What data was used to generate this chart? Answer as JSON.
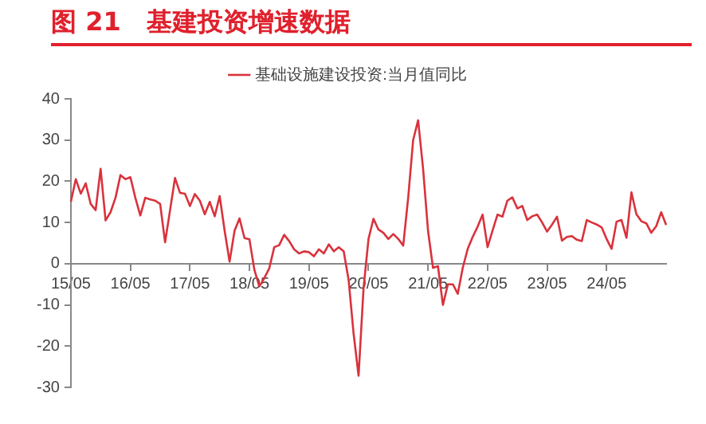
{
  "chart_data": {
    "type": "line",
    "title": "图 21　基建投资增速数据",
    "legend": "top",
    "marker": "none",
    "categories": [
      "15/05",
      null,
      null,
      null,
      null,
      null,
      null,
      null,
      null,
      null,
      null,
      null,
      "16/05",
      null,
      null,
      null,
      null,
      null,
      null,
      null,
      null,
      null,
      null,
      null,
      "17/05",
      null,
      null,
      null,
      null,
      null,
      null,
      null,
      null,
      null,
      null,
      null,
      "18/05",
      null,
      null,
      null,
      null,
      null,
      null,
      null,
      null,
      null,
      null,
      null,
      "19/05",
      null,
      null,
      null,
      null,
      null,
      null,
      null,
      null,
      null,
      null,
      null,
      "20/05",
      null,
      null,
      null,
      null,
      null,
      null,
      null,
      null,
      null,
      null,
      null,
      "21/05",
      null,
      null,
      null,
      null,
      null,
      null,
      null,
      null,
      null,
      null,
      null,
      "22/05",
      null,
      null,
      null,
      null,
      null,
      null,
      null,
      null,
      null,
      null,
      null,
      "23/05",
      null,
      null,
      null,
      null,
      null,
      null,
      null,
      null,
      null,
      null,
      null,
      "24/05",
      null,
      null,
      null,
      null,
      null,
      null,
      null,
      null,
      null,
      null,
      null,
      null
    ],
    "series": [
      {
        "name": "基础设施建设投资:当月值同比",
        "color": "#d9323c",
        "values": [
          15,
          20.5,
          17,
          19.5,
          14.5,
          13,
          23,
          10.5,
          12.5,
          16,
          21.5,
          20.5,
          21,
          16,
          11.7,
          16,
          15.6,
          15.3,
          14.5,
          5.2,
          13,
          20.8,
          17.2,
          17,
          14,
          16.9,
          15.3,
          12,
          15,
          11.5,
          16.4,
          8,
          0.5,
          8,
          11,
          6.2,
          5.9,
          -1.5,
          -5.5,
          -3.5,
          -1.1,
          4,
          4.5,
          7,
          5.5,
          3.5,
          2.5,
          3,
          2.8,
          1.8,
          3.5,
          2.5,
          4.7,
          3,
          4,
          3,
          -4,
          -17,
          -27.2,
          -6,
          6,
          10.9,
          8.3,
          7.5,
          6,
          7.2,
          6,
          4.4,
          16,
          30,
          34.8,
          23.1,
          8,
          -1,
          -0.6,
          -10,
          -5,
          -5,
          -7.3,
          -1,
          3.6,
          6.5,
          9,
          11.9,
          4,
          8,
          11.9,
          11.4,
          15.3,
          16.1,
          13.4,
          14,
          10.6,
          11.5,
          11.9,
          10,
          7.8,
          9.5,
          11.4,
          5.6,
          6.5,
          6.7,
          5.8,
          5.5,
          10.6,
          10,
          9.5,
          8.8,
          6,
          3.6,
          10.2,
          10.6,
          6.3,
          17.3,
          12,
          10.3,
          9.8,
          7.5,
          9.1,
          12.5,
          9.4
        ]
      }
    ],
    "ylim": [
      -30,
      40
    ],
    "yticks": [
      -30,
      -20,
      -10,
      0,
      10,
      20,
      30,
      40
    ]
  }
}
